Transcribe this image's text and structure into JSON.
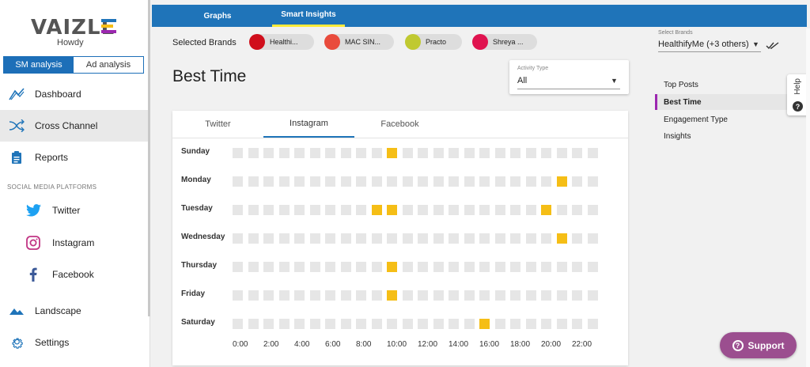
{
  "sidebar": {
    "logo": "VAIZLE",
    "greeting": "Howdy",
    "logo_colors": [
      "#1f74b9",
      "#f5be16",
      "#9c27b0"
    ],
    "toggle": {
      "sm": "SM analysis",
      "ad": "Ad analysis"
    },
    "items": [
      {
        "label": "Dashboard",
        "icon": "trend-icon"
      },
      {
        "label": "Cross Channel",
        "icon": "shuffle-icon",
        "active": true
      },
      {
        "label": "Reports",
        "icon": "clipboard-icon"
      }
    ],
    "section_label": "SOCIAL MEDIA PLATFORMS",
    "platforms": [
      {
        "label": "Twitter",
        "icon": "twitter-icon",
        "color": "#1da1f2"
      },
      {
        "label": "Instagram",
        "icon": "instagram-icon",
        "color": "#c13584"
      },
      {
        "label": "Facebook",
        "icon": "facebook-icon",
        "color": "#3b5998"
      }
    ],
    "bottom": [
      {
        "label": "Landscape",
        "icon": "landscape-icon"
      },
      {
        "label": "Settings",
        "icon": "gear-icon"
      }
    ]
  },
  "topbar": {
    "tabs": [
      "Graphs",
      "Smart Insights"
    ],
    "active": "Smart Insights"
  },
  "brands": {
    "label": "Selected Brands",
    "items": [
      {
        "name": "Healthi...",
        "color": "#d00e1b"
      },
      {
        "name": "MAC SIN...",
        "color": "#e94b3c"
      },
      {
        "name": "Practo",
        "color": "#c0c931"
      },
      {
        "name": "Shreya ...",
        "color": "#e0134f"
      }
    ],
    "select_label": "Select Brands",
    "select_value": "HealthifyMe (+3 others)"
  },
  "main": {
    "title": "Best Time",
    "activity_label": "Activity Type",
    "activity_value": "All",
    "tabs": [
      "Twitter",
      "Instagram",
      "Facebook"
    ],
    "active_tab": "Instagram",
    "days": [
      "Sunday",
      "Monday",
      "Tuesday",
      "Wednesday",
      "Thursday",
      "Friday",
      "Saturday"
    ],
    "hour_labels": [
      "0:00",
      "2:00",
      "4:00",
      "6:00",
      "8:00",
      "10:00",
      "12:00",
      "14:00",
      "16:00",
      "18:00",
      "20:00",
      "22:00"
    ],
    "best_hours": [
      [
        10
      ],
      [
        21
      ],
      [
        9,
        10,
        20
      ],
      [
        21
      ],
      [
        10
      ],
      [
        10
      ],
      [
        16
      ]
    ]
  },
  "right_nav": {
    "items": [
      "Top Posts",
      "Best Time",
      "Engagement Type",
      "Insights"
    ],
    "active": "Best Time",
    "help": "Help"
  },
  "support": "Support"
}
